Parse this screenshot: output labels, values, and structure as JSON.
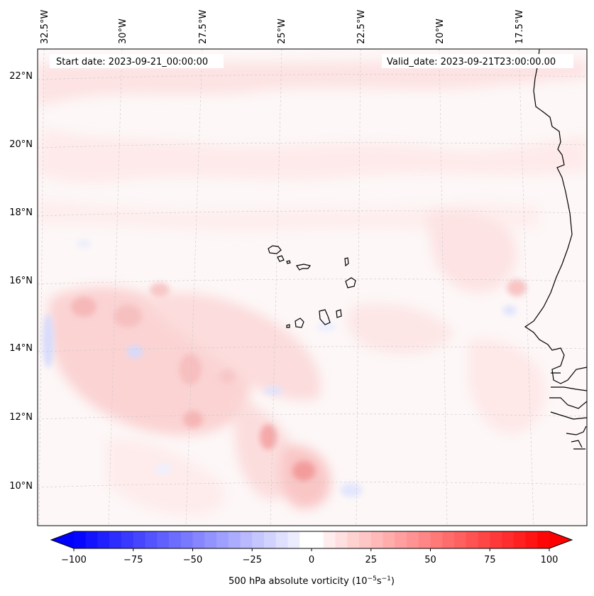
{
  "map": {
    "start_date_label": "Start date: 2023-09-21_00:00:00",
    "valid_date_label": "Valid_date: 2023-09-21T23:00:00.00",
    "lon_labels": [
      "32.5°W",
      "30°W",
      "27.5°W",
      "25°W",
      "22.5°W",
      "20°W",
      "17.5°W"
    ],
    "lat_labels": [
      "22°N",
      "20°N",
      "18°N",
      "16°N",
      "14°N",
      "12°N",
      "10°N"
    ],
    "field": "500 hPa absolute vorticity",
    "background_color": "#fdf7f7",
    "coast_color": "#000000"
  },
  "colorbar": {
    "ticks": [
      "−100",
      "−75",
      "−50",
      "−25",
      "0",
      "25",
      "50",
      "75",
      "100"
    ],
    "min": -100,
    "max": 100,
    "label_prefix": "500 hPa absolute vorticity (10",
    "label_exp1": "−5",
    "label_mid": "s",
    "label_exp2": "−1",
    "label_suffix": ")",
    "low_color": "#0000ff",
    "mid_color": "#ffffff",
    "high_color": "#ff0000"
  }
}
